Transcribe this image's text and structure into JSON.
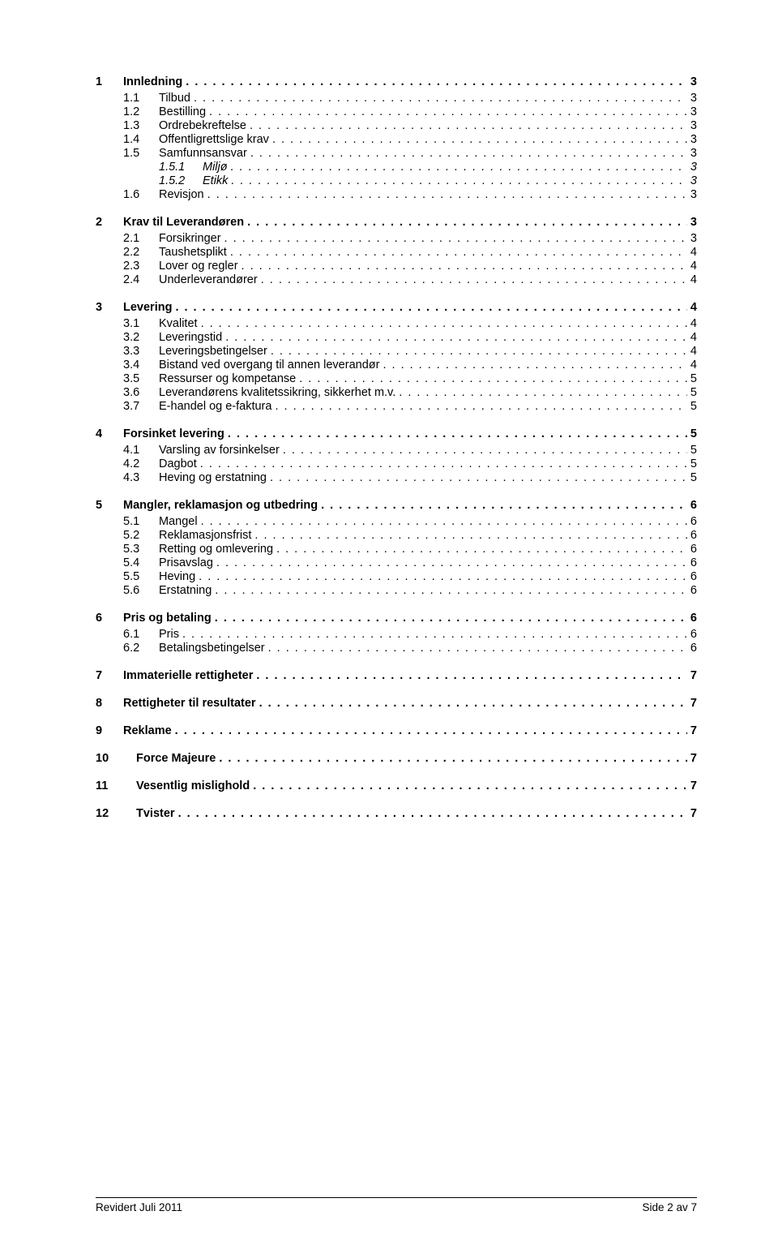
{
  "toc": [
    {
      "lvl": 1,
      "num": "1",
      "label": "Innledning",
      "pg": "3"
    },
    {
      "lvl": 2,
      "num": "1.1",
      "label": "Tilbud",
      "pg": "3"
    },
    {
      "lvl": 2,
      "num": "1.2",
      "label": "Bestilling",
      "pg": "3"
    },
    {
      "lvl": 2,
      "num": "1.3",
      "label": "Ordrebekreftelse",
      "pg": "3"
    },
    {
      "lvl": 2,
      "num": "1.4",
      "label": "Offentligrettslige krav",
      "pg": "3"
    },
    {
      "lvl": 2,
      "num": "1.5",
      "label": "Samfunnsansvar",
      "pg": "3"
    },
    {
      "lvl": 3,
      "num": "1.5.1",
      "label": "Miljø",
      "pg": "3"
    },
    {
      "lvl": 3,
      "num": "1.5.2",
      "label": "Etikk",
      "pg": "3"
    },
    {
      "lvl": 2,
      "num": "1.6",
      "label": "Revisjon",
      "pg": "3"
    },
    {
      "lvl": 1,
      "num": "2",
      "label": "Krav til Leverandøren",
      "pg": "3"
    },
    {
      "lvl": 2,
      "num": "2.1",
      "label": "Forsikringer",
      "pg": "3"
    },
    {
      "lvl": 2,
      "num": "2.2",
      "label": "Taushetsplikt",
      "pg": "4"
    },
    {
      "lvl": 2,
      "num": "2.3",
      "label": "Lover og regler",
      "pg": "4"
    },
    {
      "lvl": 2,
      "num": "2.4",
      "label": "Underleverandører",
      "pg": "4"
    },
    {
      "lvl": 1,
      "num": "3",
      "label": "Levering",
      "pg": "4"
    },
    {
      "lvl": 2,
      "num": "3.1",
      "label": "Kvalitet",
      "pg": "4"
    },
    {
      "lvl": 2,
      "num": "3.2",
      "label": "Leveringstid",
      "pg": "4"
    },
    {
      "lvl": 2,
      "num": "3.3",
      "label": "Leveringsbetingelser",
      "pg": "4"
    },
    {
      "lvl": 2,
      "num": "3.4",
      "label": "Bistand ved overgang til annen leverandør",
      "pg": "4"
    },
    {
      "lvl": 2,
      "num": "3.5",
      "label": "Ressurser og kompetanse",
      "pg": "5"
    },
    {
      "lvl": 2,
      "num": "3.6",
      "label": "Leverandørens kvalitetssikring, sikkerhet m.v.",
      "pg": "5"
    },
    {
      "lvl": 2,
      "num": "3.7",
      "label": "E-handel og e-faktura",
      "pg": "5"
    },
    {
      "lvl": 1,
      "num": "4",
      "label": "Forsinket levering",
      "pg": "5"
    },
    {
      "lvl": 2,
      "num": "4.1",
      "label": "Varsling av forsinkelser",
      "pg": "5"
    },
    {
      "lvl": 2,
      "num": "4.2",
      "label": "Dagbot",
      "pg": "5"
    },
    {
      "lvl": 2,
      "num": "4.3",
      "label": "Heving og erstatning",
      "pg": "5"
    },
    {
      "lvl": 1,
      "num": "5",
      "label": "Mangler, reklamasjon og utbedring",
      "pg": "6"
    },
    {
      "lvl": 2,
      "num": "5.1",
      "label": "Mangel",
      "pg": "6"
    },
    {
      "lvl": 2,
      "num": "5.2",
      "label": "Reklamasjonsfrist",
      "pg": "6"
    },
    {
      "lvl": 2,
      "num": "5.3",
      "label": "Retting og omlevering",
      "pg": "6"
    },
    {
      "lvl": 2,
      "num": "5.4",
      "label": "Prisavslag",
      "pg": "6"
    },
    {
      "lvl": 2,
      "num": "5.5",
      "label": "Heving",
      "pg": "6"
    },
    {
      "lvl": 2,
      "num": "5.6",
      "label": "Erstatning",
      "pg": "6"
    },
    {
      "lvl": 1,
      "num": "6",
      "label": "Pris og betaling",
      "pg": "6"
    },
    {
      "lvl": 2,
      "num": "6.1",
      "label": "Pris",
      "pg": "6"
    },
    {
      "lvl": 2,
      "num": "6.2",
      "label": "Betalingsbetingelser",
      "pg": "6"
    },
    {
      "lvl": 1,
      "num": "7",
      "label": "Immaterielle rettigheter",
      "pg": "7"
    },
    {
      "lvl": 1,
      "num": "8",
      "label": "Rettigheter til resultater",
      "pg": "7"
    },
    {
      "lvl": 1,
      "num": "9",
      "label": "Reklame",
      "pg": "7"
    },
    {
      "lvl": 1,
      "num": "10",
      "label": "Force Majeure",
      "pg": "7",
      "wide": true
    },
    {
      "lvl": 1,
      "num": "11",
      "label": "Vesentlig mislighold",
      "pg": "7",
      "wide": true
    },
    {
      "lvl": 1,
      "num": "12",
      "label": "Tvister",
      "pg": "7",
      "wide": true
    }
  ],
  "footer": {
    "left": "Revidert Juli 2011",
    "right": "Side 2 av 7"
  },
  "leader_dots": ". . . . . . . . . . . . . . . . . . . . . . . . . . . . . . . . . . . . . . . . . . . . . . . . . . . . . . . . . . . . . . . . . . . . . . . . . . . . . . . . . . . . . . . . . . . . . . . . . . . . . . . . . . . . . . . . . . . . . . . . . . . . . . . . . . . . . . . . . . . . . . . . ."
}
